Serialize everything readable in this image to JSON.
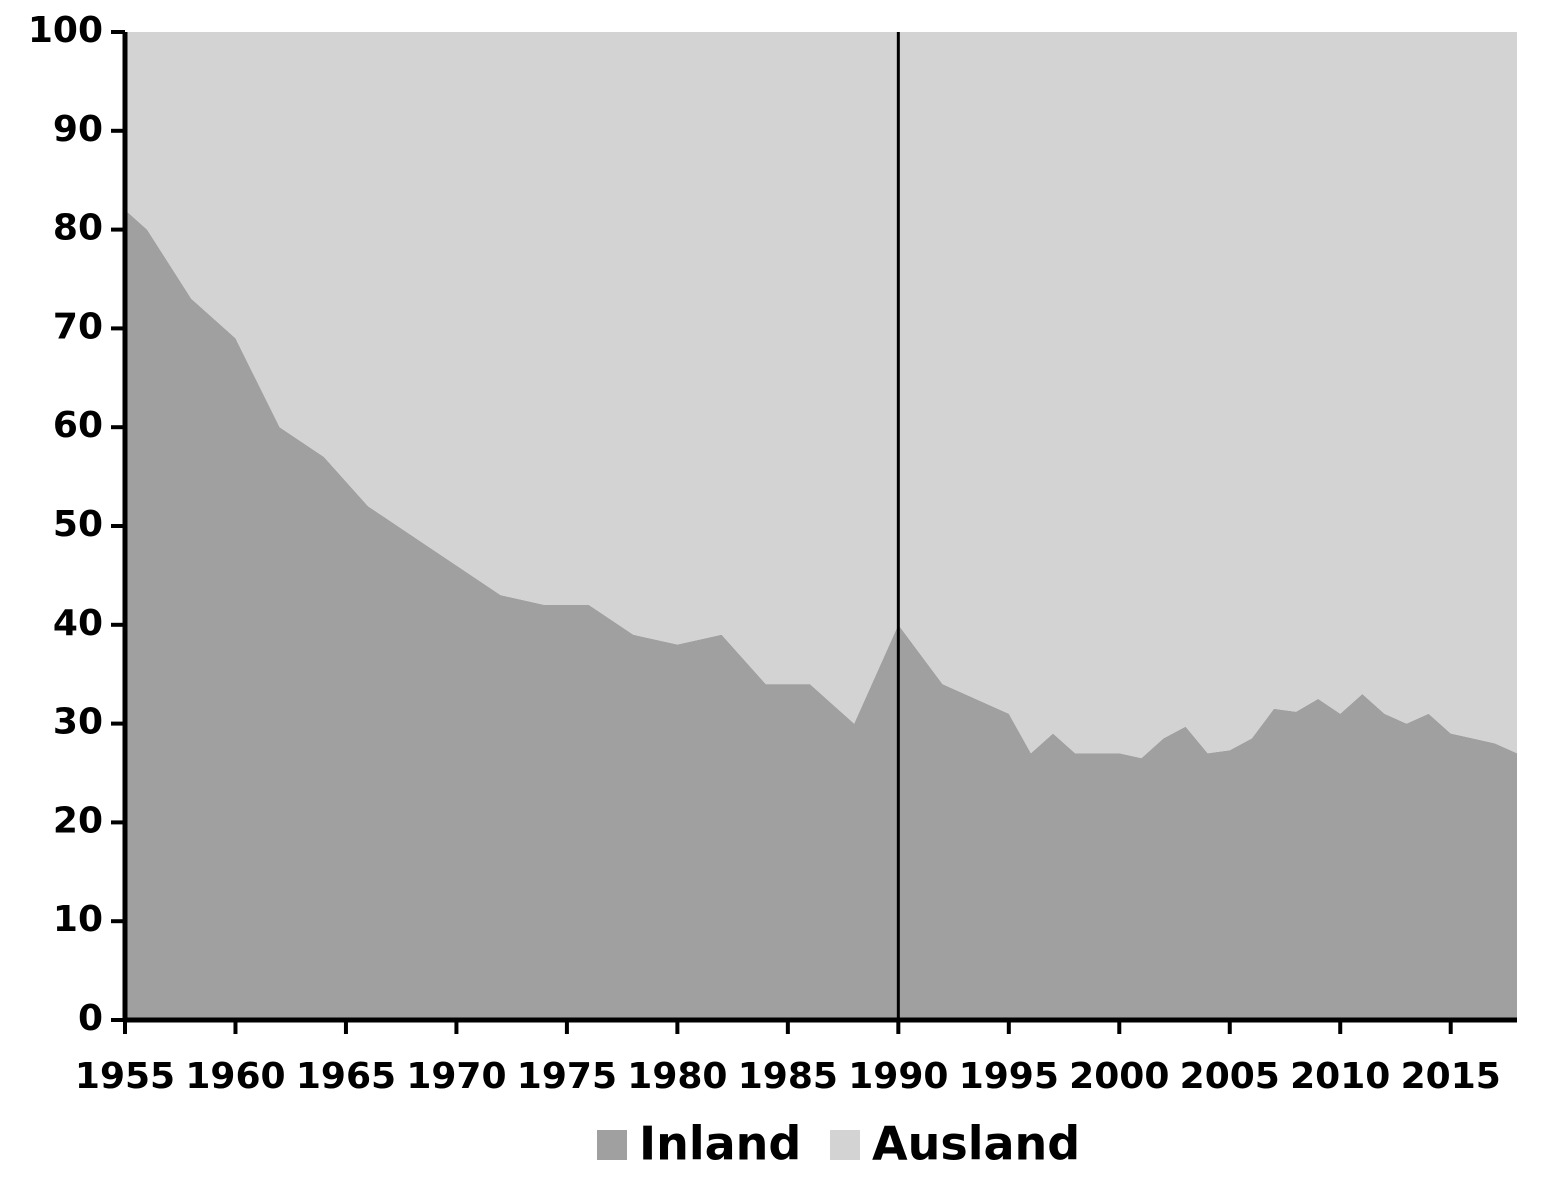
{
  "chart_data": {
    "type": "stacked_area",
    "x": [
      1955,
      1956,
      1958,
      1960,
      1962,
      1964,
      1966,
      1968,
      1970,
      1972,
      1974,
      1976,
      1978,
      1980,
      1982,
      1984,
      1986,
      1988,
      1990,
      1992,
      1994,
      1995,
      1996,
      1997,
      1998,
      2000,
      2001,
      2002,
      2003,
      2004,
      2005,
      2006,
      2007,
      2008,
      2009,
      2010,
      2011,
      2012,
      2013,
      2014,
      2015,
      2016,
      2017,
      2018
    ],
    "series": [
      {
        "name": "Inland",
        "color": "#a0a0a0",
        "values": [
          82,
          80,
          73,
          69,
          60,
          57,
          52,
          49,
          46,
          43,
          42,
          42,
          39,
          38,
          39,
          34,
          34,
          30,
          40,
          34,
          32,
          31,
          27,
          29,
          27,
          27,
          26.5,
          28.5,
          29.7,
          27,
          27.3,
          28.5,
          31.5,
          31.2,
          32.5,
          31,
          33,
          31,
          30,
          31,
          29,
          28.5,
          28,
          27
        ]
      },
      {
        "name": "Ausland",
        "color": "#d3d3d3",
        "values": [
          18,
          20,
          27,
          31,
          40,
          43,
          48,
          51,
          54,
          57,
          58,
          58,
          61,
          62,
          61,
          66,
          66,
          70,
          60,
          66,
          68,
          69,
          73,
          71,
          73,
          73,
          73.5,
          71.5,
          70.3,
          73,
          72.7,
          71.5,
          68.5,
          68.8,
          67.5,
          69,
          67,
          69,
          70,
          69,
          71,
          71.5,
          72,
          73
        ]
      }
    ],
    "xlim": [
      1955,
      2018
    ],
    "xticks": [
      1955,
      1960,
      1965,
      1970,
      1975,
      1980,
      1985,
      1990,
      1995,
      2000,
      2005,
      2010,
      2015
    ],
    "ylim": [
      0,
      100
    ],
    "yticks": [
      0,
      10,
      20,
      30,
      40,
      50,
      60,
      70,
      80,
      90,
      100
    ],
    "vline": 1990,
    "legend": "bottom"
  }
}
